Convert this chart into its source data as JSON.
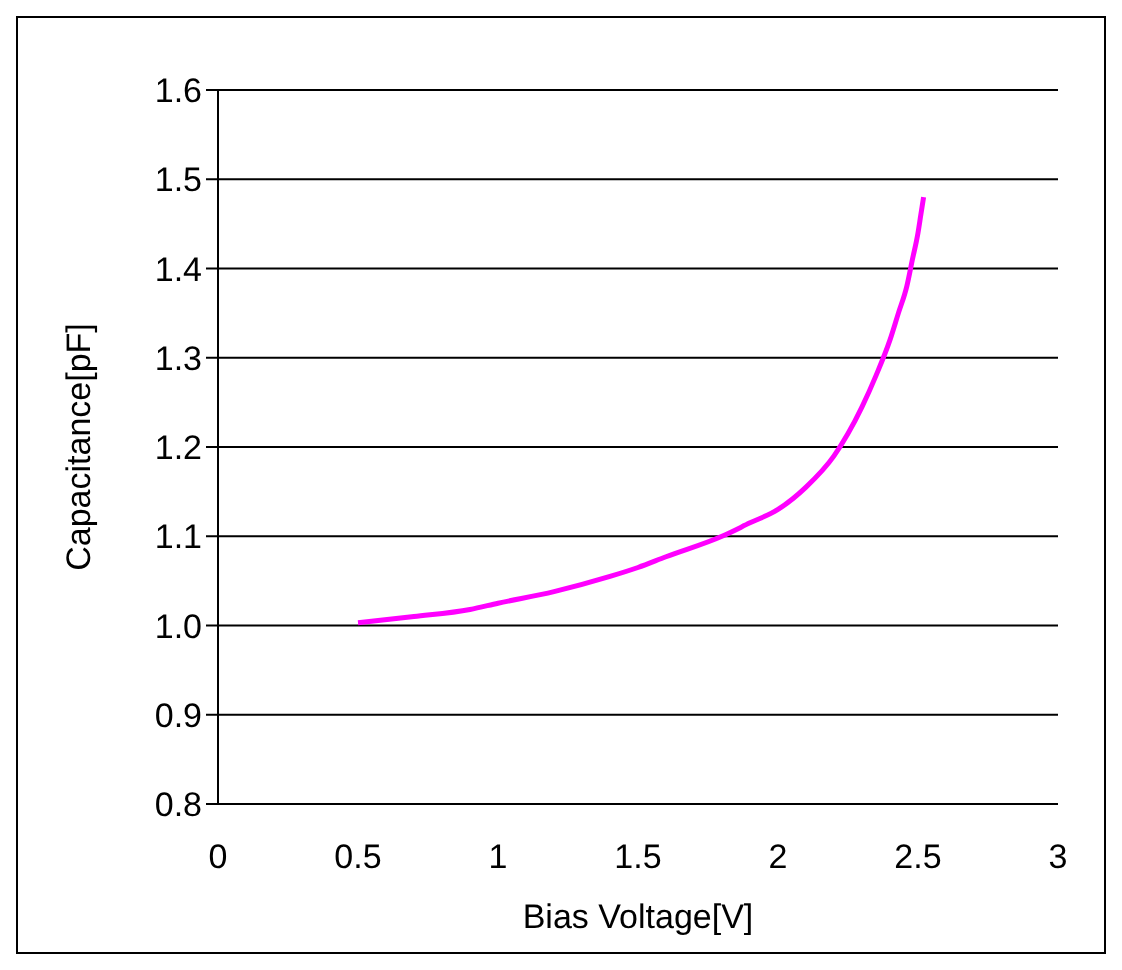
{
  "chart_data": {
    "type": "line",
    "xlabel": "Bias Voltage[V]",
    "ylabel": "Capacitance[pF]",
    "series": [
      {
        "color": "#ff00ff",
        "x": [
          0.5,
          0.7,
          0.9,
          1.0,
          1.2,
          1.4,
          1.5,
          1.6,
          1.8,
          1.9,
          2.0,
          2.1,
          2.2,
          2.25,
          2.3,
          2.35,
          2.4,
          2.43,
          2.46,
          2.48,
          2.5,
          2.51,
          2.52
        ],
        "values": [
          1.003,
          1.01,
          1.018,
          1.025,
          1.038,
          1.055,
          1.065,
          1.077,
          1.1,
          1.115,
          1.13,
          1.155,
          1.19,
          1.215,
          1.245,
          1.28,
          1.32,
          1.35,
          1.38,
          1.41,
          1.44,
          1.46,
          1.48
        ]
      }
    ],
    "xlim": [
      0,
      3
    ],
    "xticks": [
      0,
      0.5,
      1,
      1.5,
      2,
      2.5,
      3
    ],
    "ylim": [
      0.8,
      1.6
    ],
    "yticks": [
      {
        "value": 0.8,
        "label": "0.8"
      },
      {
        "value": 0.9,
        "label": "0.9"
      },
      {
        "value": 1.0,
        "label": "1.0"
      },
      {
        "value": 1.1,
        "label": "1.1"
      },
      {
        "value": 1.2,
        "label": "1.2"
      },
      {
        "value": 1.3,
        "label": "1.3"
      },
      {
        "value": 1.4,
        "label": "1.4"
      },
      {
        "value": 1.5,
        "label": "1.5"
      },
      {
        "value": 1.6,
        "label": "1.6"
      }
    ],
    "grid": "y",
    "marker": "none",
    "line_style": "solid"
  }
}
